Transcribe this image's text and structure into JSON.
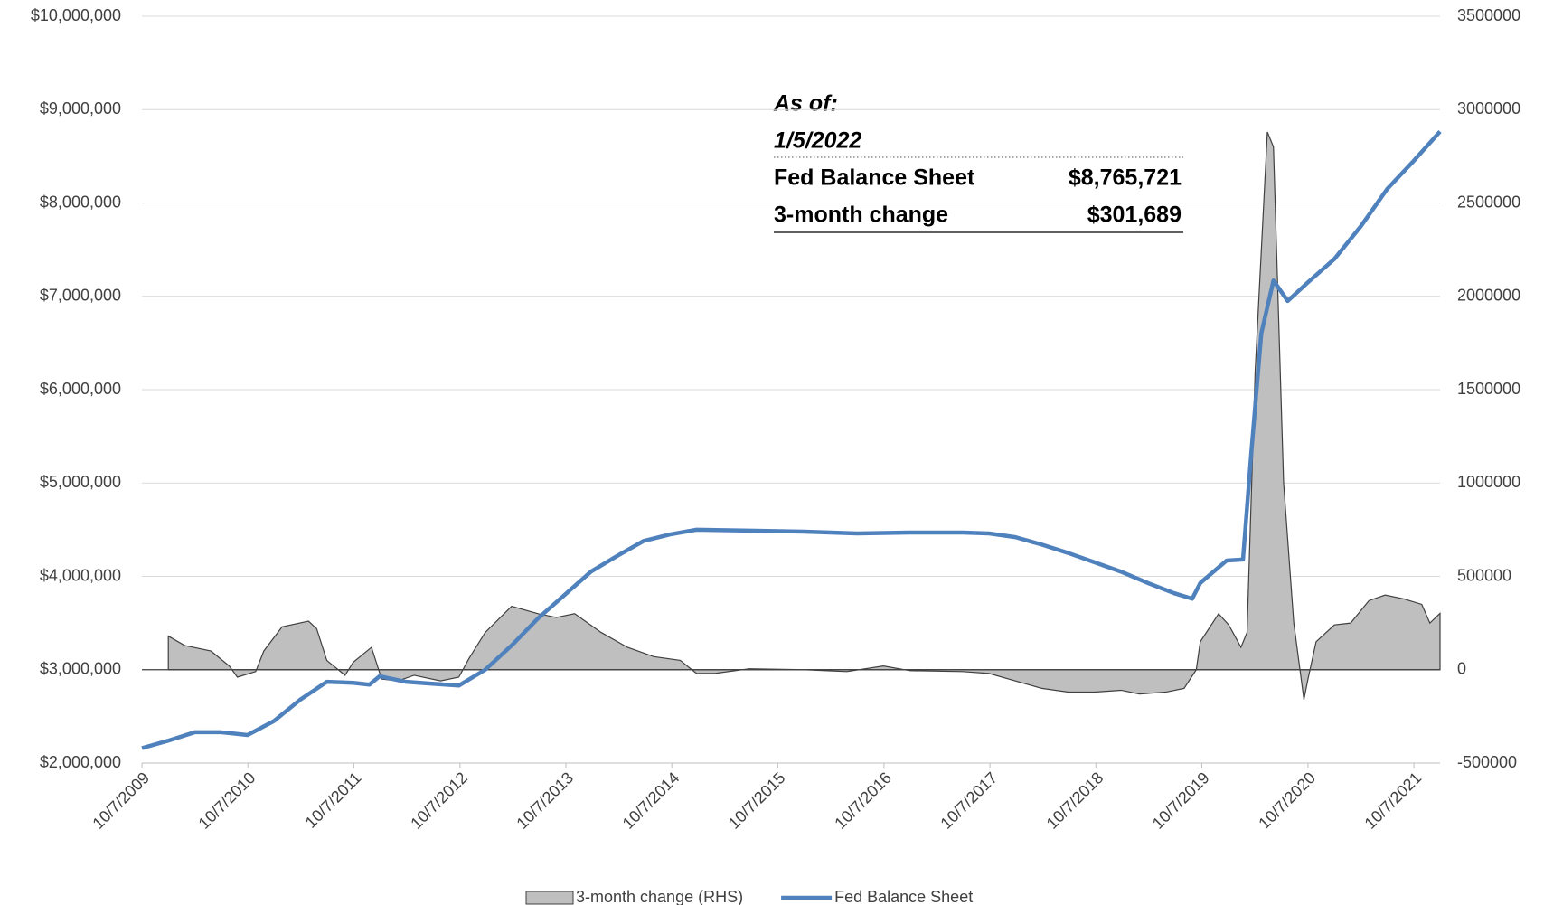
{
  "chart_data": {
    "type": "line",
    "xlim": [
      "10/7/2009",
      "1/5/2022"
    ],
    "xticks": [
      "10/7/2009",
      "10/7/2010",
      "10/7/2011",
      "10/7/2012",
      "10/7/2013",
      "10/7/2014",
      "10/7/2015",
      "10/7/2016",
      "10/7/2017",
      "10/7/2018",
      "10/7/2019",
      "10/7/2020",
      "10/7/2021"
    ],
    "ylim": [
      2000000,
      10000000
    ],
    "yticks": [
      {
        "value": 2000000,
        "label": "$2,000,000"
      },
      {
        "value": 3000000,
        "label": "$3,000,000"
      },
      {
        "value": 4000000,
        "label": "$4,000,000"
      },
      {
        "value": 5000000,
        "label": "$5,000,000"
      },
      {
        "value": 6000000,
        "label": "$6,000,000"
      },
      {
        "value": 7000000,
        "label": "$7,000,000"
      },
      {
        "value": 8000000,
        "label": "$8,000,000"
      },
      {
        "value": 9000000,
        "label": "$9,000,000"
      },
      {
        "value": 10000000,
        "label": "$10,000,000"
      }
    ],
    "y2lim": [
      -500000,
      3500000
    ],
    "y2ticks": [
      -500000,
      0,
      500000,
      1000000,
      1500000,
      2000000,
      2500000,
      3000000,
      3500000
    ],
    "grid": true,
    "legend": "bottom",
    "annotation": {
      "heading": "As of:",
      "date": "1/5/2022",
      "rows": [
        {
          "label": "Fed Balance Sheet",
          "value": "$8,765,721"
        },
        {
          "label": "3-month change",
          "value": "$301,689"
        }
      ]
    },
    "series": [
      {
        "name": "3-month change (RHS)",
        "type": "area",
        "axis": "y2",
        "color": "#bfbfbf",
        "line_color": "#404040",
        "x": [
          "1/6/2010",
          "3/3/2010",
          "6/2/2010",
          "8/4/2010",
          "9/1/2010",
          "11/3/2010",
          "12/1/2010",
          "2/2/2011",
          "5/4/2011",
          "6/1/2011",
          "7/6/2011",
          "9/7/2011",
          "10/5/2011",
          "12/7/2011",
          "1/11/2012",
          "3/7/2012",
          "5/2/2012",
          "8/1/2012",
          "10/3/2012",
          "11/7/2012",
          "1/2/2013",
          "4/3/2013",
          "7/3/2013",
          "9/4/2013",
          "11/6/2013",
          "2/5/2014",
          "5/7/2014",
          "8/6/2014",
          "11/5/2014",
          "12/31/2014",
          "3/4/2015",
          "7/1/2015",
          "12/30/2015",
          "6/1/2016",
          "10/5/2016",
          "1/4/2017",
          "7/5/2017",
          "10/4/2017",
          "1/3/2018",
          "4/4/2018",
          "7/4/2018",
          "10/3/2018",
          "1/2/2019",
          "3/6/2019",
          "6/5/2019",
          "8/7/2019",
          "9/18/2019",
          "10/2/2019",
          "12/4/2019",
          "1/8/2020",
          "2/19/2020",
          "3/11/2020",
          "4/8/2020",
          "5/20/2020",
          "6/10/2020",
          "7/15/2020",
          "8/19/2020",
          "9/23/2020",
          "10/7/2020",
          "11/4/2020",
          "1/6/2021",
          "3/3/2021",
          "5/5/2021",
          "6/30/2021",
          "9/1/2021",
          "11/3/2021",
          "12/1/2021",
          "1/5/2022"
        ],
        "values": [
          180000,
          130000,
          100000,
          20000,
          -40000,
          -10000,
          100000,
          230000,
          260000,
          220000,
          50000,
          -30000,
          40000,
          120000,
          -50000,
          -60000,
          -30000,
          -60000,
          -40000,
          60000,
          200000,
          340000,
          300000,
          280000,
          300000,
          200000,
          120000,
          70000,
          50000,
          -20000,
          -20000,
          5000,
          0,
          -10000,
          20000,
          -5000,
          -10000,
          -20000,
          -60000,
          -100000,
          -120000,
          -120000,
          -110000,
          -130000,
          -120000,
          -100000,
          0,
          150000,
          300000,
          240000,
          120000,
          200000,
          1600000,
          2880000,
          2800000,
          1000000,
          250000,
          -160000,
          -50000,
          150000,
          240000,
          250000,
          370000,
          400000,
          380000,
          350000,
          250000,
          301689
        ]
      },
      {
        "name": "Fed Balance Sheet",
        "type": "line",
        "axis": "y",
        "color": "#4f81bd",
        "x": [
          "10/7/2009",
          "1/6/2010",
          "4/7/2010",
          "7/7/2010",
          "10/6/2010",
          "1/5/2011",
          "4/6/2011",
          "7/6/2011",
          "10/5/2011",
          "11/30/2011",
          "1/4/2012",
          "4/4/2012",
          "7/4/2012",
          "10/3/2012",
          "1/2/2013",
          "4/3/2013",
          "7/3/2013",
          "10/2/2013",
          "1/1/2014",
          "4/2/2014",
          "7/2/2014",
          "10/1/2014",
          "12/31/2014",
          "7/1/2015",
          "1/6/2016",
          "7/6/2016",
          "1/4/2017",
          "7/5/2017",
          "10/4/2017",
          "1/3/2018",
          "4/4/2018",
          "7/4/2018",
          "10/3/2018",
          "1/2/2019",
          "4/3/2019",
          "7/3/2019",
          "9/4/2019",
          "10/2/2019",
          "1/1/2020",
          "2/26/2020",
          "3/25/2020",
          "4/29/2020",
          "6/10/2020",
          "7/29/2020",
          "10/7/2020",
          "1/6/2021",
          "4/7/2021",
          "7/7/2021",
          "10/6/2021",
          "1/5/2022"
        ],
        "values": [
          2160000,
          2240000,
          2330000,
          2330000,
          2300000,
          2450000,
          2680000,
          2870000,
          2860000,
          2840000,
          2930000,
          2870000,
          2850000,
          2830000,
          3000000,
          3260000,
          3550000,
          3800000,
          4050000,
          4220000,
          4380000,
          4450000,
          4500000,
          4490000,
          4480000,
          4460000,
          4470000,
          4470000,
          4460000,
          4420000,
          4340000,
          4250000,
          4150000,
          4050000,
          3930000,
          3820000,
          3760000,
          3930000,
          4170000,
          4180000,
          5300000,
          6600000,
          7170000,
          6950000,
          7150000,
          7400000,
          7750000,
          8150000,
          8450000,
          8765721
        ]
      }
    ]
  }
}
